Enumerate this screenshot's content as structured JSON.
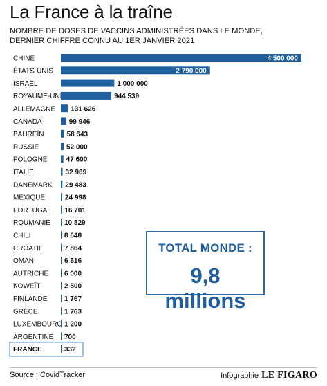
{
  "title": "La France à la traîne",
  "subtitle_line1": "NOMBRE DE DOSES DE VACCINS ADMINISTRÉES DANS LE MONDE,",
  "subtitle_line2": "DERNIER CHIFFRE CONNU AU 1ER JANVIER 2021",
  "total": {
    "label": "TOTAL MONDE :",
    "value": "9,8 millions"
  },
  "footer": {
    "source": "Source : CovidTracker",
    "credit_label": "Infographie",
    "brand": "LE FIGARO"
  },
  "colors": {
    "bar": "#1f5f9e",
    "highlight_border": "#3b7fc4",
    "text": "#111111"
  },
  "chart_data": {
    "type": "bar",
    "orientation": "horizontal",
    "categories": [
      "CHINE",
      "ÉTATS-UNIS",
      "ISRAËL",
      "ROYAUME-UNI",
      "ALLEMAGNE",
      "CANADA",
      "BAHREÏN",
      "RUSSIE",
      "POLOGNE",
      "ITALIE",
      "DANEMARK",
      "MEXIQUE",
      "PORTUGAL",
      "ROUMANIE",
      "CHILI",
      "CROATIE",
      "OMAN",
      "AUTRICHE",
      "KOWEÏT",
      "FINLANDE",
      "GRÈCE",
      "LUXEMBOURG",
      "ARGENTINE",
      "FRANCE"
    ],
    "values": [
      4500000,
      2790000,
      1000000,
      944539,
      131626,
      99946,
      58643,
      52000,
      47600,
      32969,
      29483,
      24998,
      16701,
      10829,
      8648,
      7864,
      6516,
      6000,
      2500,
      1767,
      1763,
      1200,
      700,
      332
    ],
    "value_labels": [
      "4 500 000",
      "2 790 000",
      "1 000 000",
      "944 539",
      "131 626",
      "99 946",
      "58 643",
      "52 000",
      "47 600",
      "32 969",
      "29 483",
      "24 998",
      "16 701",
      "10 829",
      "8 648",
      "7 864",
      "6 516",
      "6 000",
      "2 500",
      "1 767",
      "1 763",
      "1 200",
      "700",
      "332"
    ],
    "highlight": "FRANCE",
    "grid": false,
    "legend": "none"
  }
}
